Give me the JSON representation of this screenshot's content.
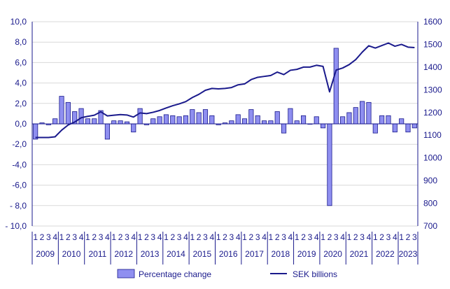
{
  "chart_data": {
    "type": "bar+line",
    "title": "",
    "colors": {
      "bar_fill": "#8f8ff0",
      "bar_stroke": "#1a1a8c",
      "line": "#1a1a8c",
      "axis": "#1a1a8c"
    },
    "quarter_labels": [
      "1",
      "2",
      "3",
      "4"
    ],
    "years": [
      "2009",
      "2010",
      "2011",
      "2012",
      "2013",
      "2014",
      "2015",
      "2016",
      "2017",
      "2018",
      "2019",
      "2020",
      "2021",
      "2022",
      "2023"
    ],
    "y_left": {
      "min": -10,
      "max": 10,
      "ticks": [
        10,
        8,
        6,
        4,
        2,
        0,
        -2,
        -4,
        -6,
        -8,
        -10
      ],
      "tick_labels": [
        "10,0",
        "8,0",
        "6,0",
        "4,0",
        "2,0",
        "0,0",
        "-2,0",
        "-4,0",
        "-6,0",
        "- 8,0",
        "- 10,0"
      ]
    },
    "y_right": {
      "min": 700,
      "max": 1600,
      "ticks": [
        1600,
        1500,
        1400,
        1300,
        1200,
        1100,
        1000,
        900,
        800,
        700
      ],
      "tick_labels": [
        "1600",
        "1500",
        "1400",
        "1300",
        "1200",
        "1100",
        "1000",
        "900",
        "800",
        "700"
      ]
    },
    "series": [
      {
        "name": "Percentage change",
        "kind": "bar",
        "axis": "left",
        "values": [
          -1.5,
          0.1,
          -0.1,
          0.5,
          2.7,
          2.1,
          1.2,
          1.5,
          0.5,
          0.5,
          1.3,
          -1.5,
          0.3,
          0.3,
          0.2,
          -0.8,
          1.5,
          -0.1,
          0.5,
          0.7,
          0.9,
          0.8,
          0.7,
          0.8,
          1.4,
          1.1,
          1.4,
          0.8,
          -0.1,
          0.1,
          0.3,
          0.9,
          0.5,
          1.4,
          0.8,
          0.3,
          0.3,
          1.2,
          -0.9,
          1.5,
          0.3,
          0.8,
          0.0,
          0.7,
          -0.4,
          -8.0,
          7.4,
          0.7,
          1.1,
          1.6,
          2.2,
          2.1,
          -0.9,
          0.8,
          0.8,
          -0.8,
          0.5,
          -0.8,
          -0.4
        ]
      },
      {
        "name": "SEK billions",
        "kind": "line",
        "axis": "right",
        "values": [
          1090,
          1090,
          1090,
          1093,
          1122,
          1145,
          1158,
          1177,
          1183,
          1188,
          1203,
          1185,
          1188,
          1191,
          1189,
          1180,
          1198,
          1195,
          1201,
          1209,
          1220,
          1230,
          1238,
          1248,
          1266,
          1280,
          1298,
          1306,
          1304,
          1306,
          1310,
          1322,
          1326,
          1345,
          1355,
          1359,
          1363,
          1378,
          1367,
          1386,
          1390,
          1400,
          1400,
          1408,
          1403,
          1291,
          1387,
          1396,
          1411,
          1433,
          1466,
          1494,
          1484,
          1495,
          1506,
          1492,
          1500,
          1488,
          1486
        ]
      }
    ]
  }
}
